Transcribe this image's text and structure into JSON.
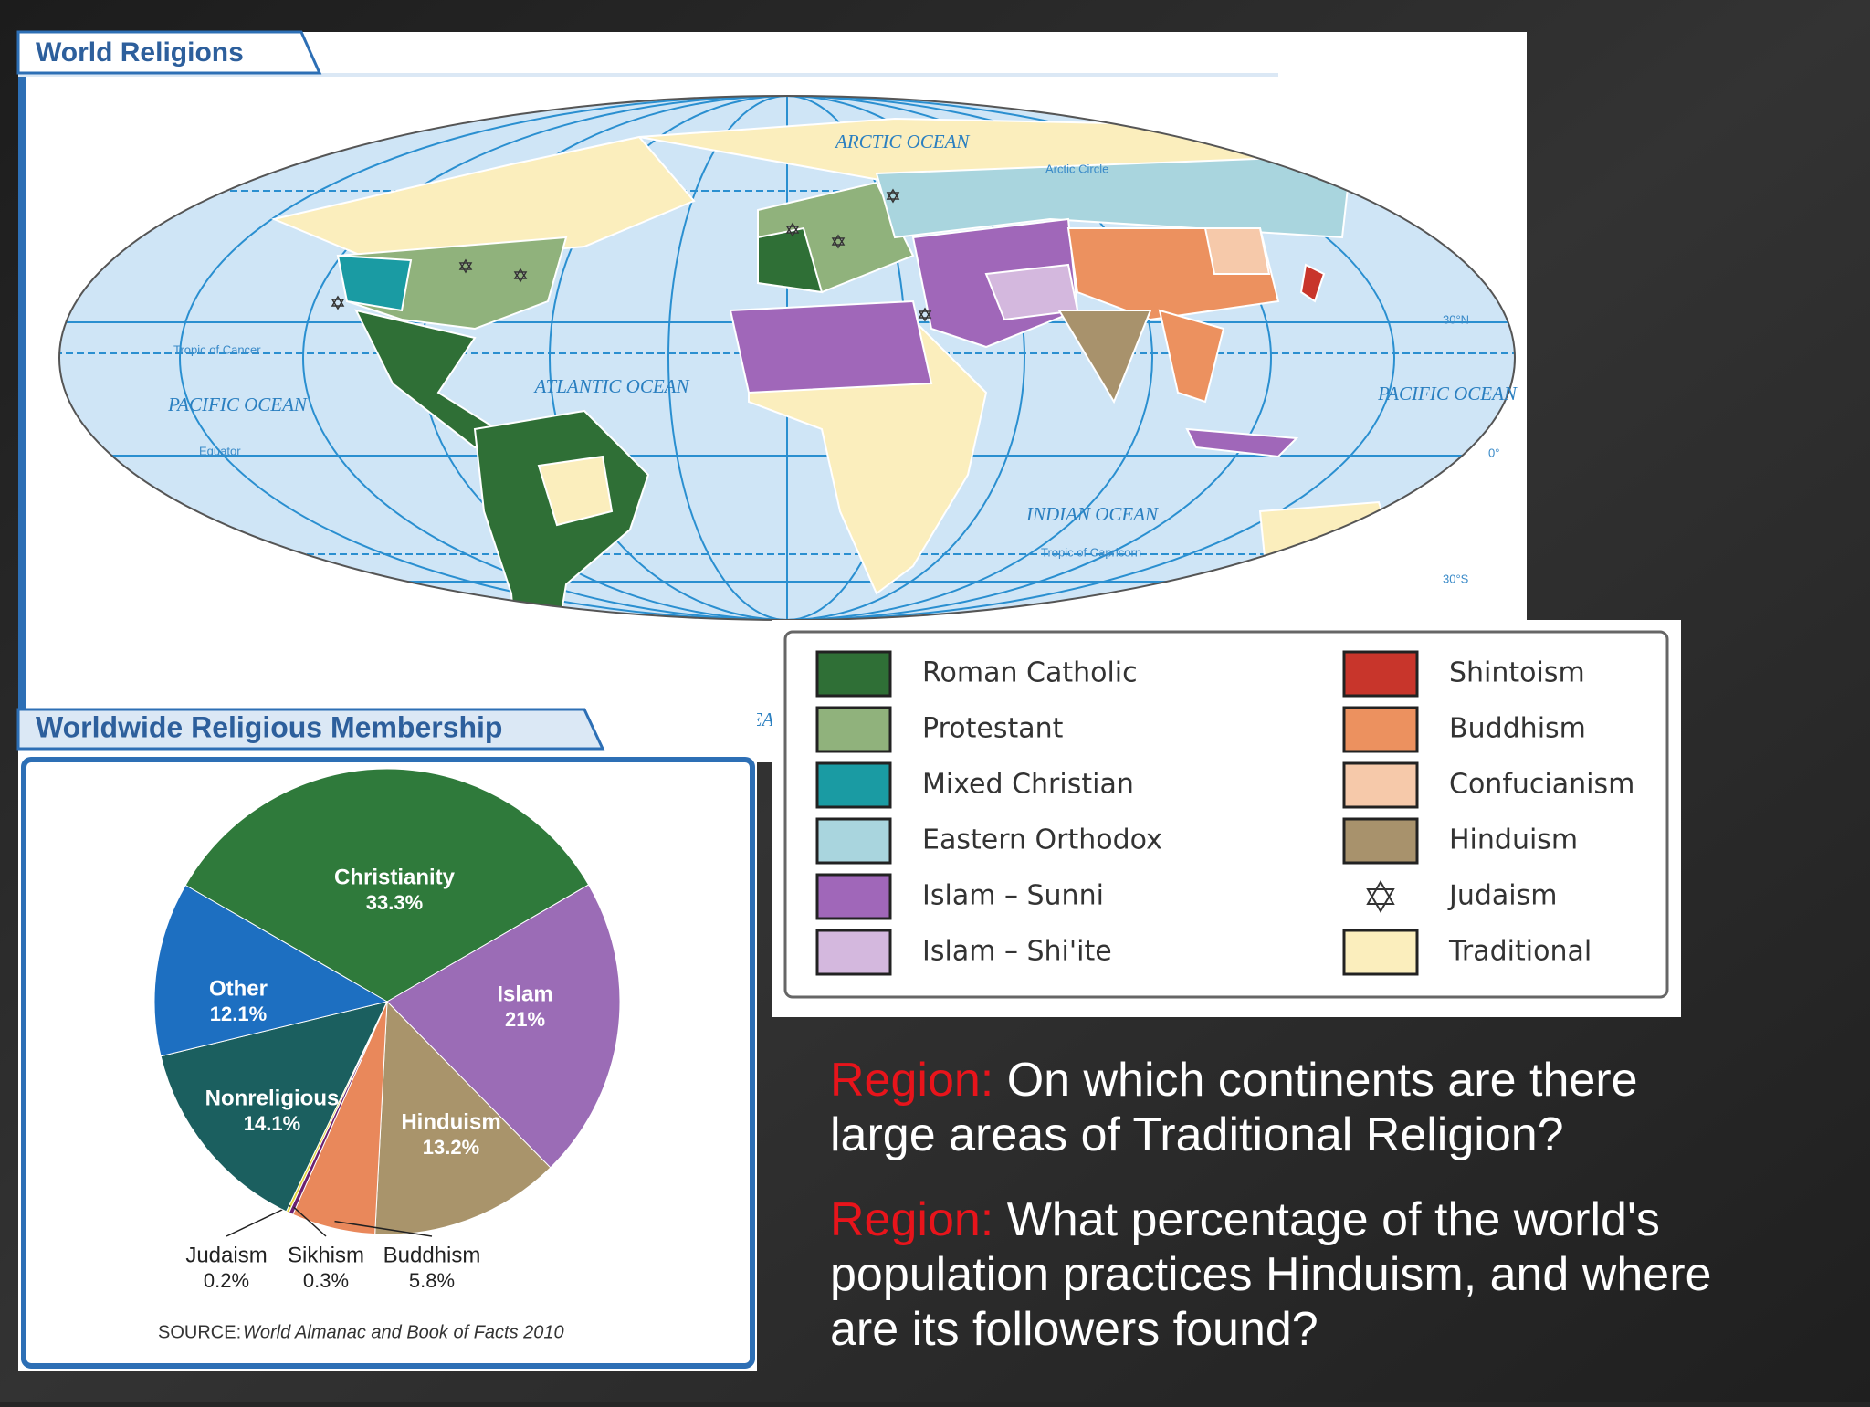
{
  "map": {
    "title": "World Religions",
    "labels": {
      "arctic": "ARCTIC OCEAN",
      "pacific_west": "PACIFIC OCEAN",
      "atlantic": "ATLANTIC OCEAN",
      "indian": "INDIAN OCEAN",
      "pacific_east": "PACIFIC OCEAN",
      "southern": "SOUTHERN OCEAN",
      "arctic_circle": "Arctic Circle",
      "tropic_cancer": "Tropic of Cancer",
      "equator": "Equator",
      "tropic_capricorn": "Tropic of Capricorn",
      "lat_30n": "30°N",
      "lat_0": "0°",
      "lat_30s": "30°S"
    }
  },
  "legend": {
    "items": [
      {
        "label": "Roman Catholic",
        "color": "#2f6f36"
      },
      {
        "label": "Protestant",
        "color": "#90b27c"
      },
      {
        "label": "Mixed Christian",
        "color": "#1a9ba3"
      },
      {
        "label": "Eastern Orthodox",
        "color": "#a9d5de"
      },
      {
        "label": "Islam – Sunni",
        "color": "#a067b9"
      },
      {
        "label": "Islam – Shi'ite",
        "color": "#d4b8de"
      },
      {
        "label": "Shintoism",
        "color": "#c8352b"
      },
      {
        "label": "Buddhism",
        "color": "#ec915f"
      },
      {
        "label": "Confucianism",
        "color": "#f6c9aa"
      },
      {
        "label": "Hinduism",
        "color": "#a8926c"
      },
      {
        "label": "Judaism",
        "symbol": "star"
      },
      {
        "label": "Traditional",
        "color": "#fbeebd"
      }
    ]
  },
  "chart_data": {
    "type": "pie",
    "title": "Worldwide Religious Membership",
    "categories": [
      "Christianity",
      "Islam",
      "Hinduism",
      "Buddhism",
      "Sikhism",
      "Judaism",
      "Nonreligious",
      "Other"
    ],
    "values": [
      33.3,
      21,
      13.2,
      5.8,
      0.3,
      0.2,
      14.1,
      12.1
    ],
    "value_labels": [
      "33.3%",
      "21%",
      "13.2%",
      "5.8%",
      "0.3%",
      "0.2%",
      "14.1%",
      "12.1%"
    ],
    "colors": [
      "#2f7a3b",
      "#9b6cb6",
      "#a9946b",
      "#e9885b",
      "#6b2170",
      "#e6d83e",
      "#1b5f5f",
      "#1d6fc1"
    ],
    "source_label": "SOURCE:",
    "source": "World Almanac and Book of Facts 2010"
  },
  "questions": [
    {
      "prefix": "Region:",
      "lines": [
        "On which continents are there",
        "large areas of Traditional Religion?"
      ]
    },
    {
      "prefix": "Region:",
      "lines": [
        "What percentage of the world's",
        "population practices Hinduism, and where",
        "are its followers found?"
      ]
    }
  ]
}
